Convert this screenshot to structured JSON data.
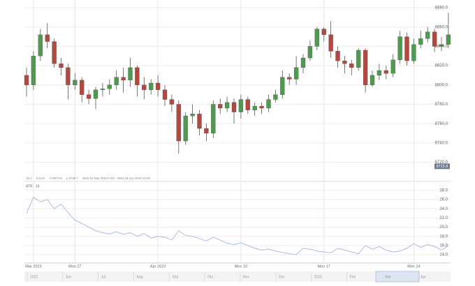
{
  "chart_data": [
    {
      "type": "candlestick",
      "categories": [
        null,
        "Mar 2023",
        null,
        null,
        null,
        null,
        null,
        "Mon 27",
        null,
        null,
        null,
        null,
        null,
        null,
        null,
        null,
        null,
        null,
        null,
        "Apr 2023",
        null,
        null,
        null,
        null,
        null,
        null,
        null,
        null,
        null,
        null,
        null,
        "Mon 10",
        null,
        null,
        null,
        null,
        null,
        null,
        null,
        null,
        null,
        null,
        null,
        "Mon 17",
        null,
        null,
        null,
        null,
        null,
        null,
        null,
        null,
        null,
        null,
        null,
        null,
        "Mon 24",
        null,
        null,
        null,
        null,
        null
      ],
      "open": [
        8810,
        8800,
        8830,
        8852,
        8845,
        8822,
        8818,
        8800,
        8805,
        8790,
        8786,
        8795,
        8796,
        8800,
        8808,
        8805,
        8818,
        8800,
        8795,
        8802,
        8795,
        8785,
        8780,
        8742,
        8768,
        8770,
        8755,
        8750,
        8780,
        8776,
        8782,
        8772,
        8785,
        8774,
        8778,
        8776,
        8785,
        8790,
        8808,
        8806,
        8818,
        8828,
        8840,
        8858,
        8852,
        8835,
        8825,
        8822,
        8818,
        8836,
        8800,
        8810,
        8815,
        8812,
        8826,
        8850,
        8825,
        8842,
        8848,
        8855,
        8840,
        8842
      ],
      "high": [
        8818,
        8835,
        8858,
        8864,
        8848,
        8828,
        8822,
        8812,
        8808,
        8795,
        8798,
        8802,
        8806,
        8815,
        8818,
        8828,
        8820,
        8808,
        8806,
        8810,
        8800,
        8790,
        8784,
        8772,
        8780,
        8774,
        8760,
        8784,
        8786,
        8788,
        8786,
        8790,
        8788,
        8782,
        8782,
        8790,
        8795,
        8815,
        8812,
        8830,
        8832,
        8846,
        8860,
        8860,
        8866,
        8840,
        8830,
        8826,
        8838,
        8838,
        8815,
        8822,
        8820,
        8832,
        8856,
        8854,
        8848,
        8856,
        8860,
        8858,
        8850,
        8874.8
      ],
      "low": [
        8788,
        8795,
        8825,
        8838,
        8818,
        8810,
        8785,
        8795,
        8782,
        8780,
        8775,
        8788,
        8790,
        8795,
        8792,
        8798,
        8788,
        8785,
        8790,
        8788,
        8778,
        8772,
        8728.7,
        8738,
        8760,
        8748,
        8742,
        8745,
        8770,
        8772,
        8760,
        8765,
        8770,
        8768,
        8770,
        8772,
        8782,
        8786,
        8800,
        8800,
        8812,
        8825,
        8836,
        8845,
        8828,
        8818,
        8812,
        8810,
        8815,
        8792,
        8798,
        8805,
        8806,
        8808,
        8822,
        8820,
        8822,
        8838,
        8844,
        8834,
        8835,
        8838
      ],
      "close": [
        8800,
        8830,
        8852,
        8845,
        8822,
        8818,
        8800,
        8805,
        8790,
        8786,
        8795,
        8796,
        8800,
        8808,
        8805,
        8818,
        8800,
        8795,
        8802,
        8795,
        8785,
        8780,
        8742,
        8768,
        8770,
        8755,
        8750,
        8780,
        8776,
        8782,
        8772,
        8785,
        8774,
        8778,
        8776,
        8785,
        8790,
        8808,
        8806,
        8818,
        8828,
        8840,
        8858,
        8852,
        8835,
        8825,
        8822,
        8818,
        8836,
        8800,
        8810,
        8815,
        8812,
        8826,
        8850,
        8825,
        8842,
        8848,
        8855,
        8840,
        8842,
        8852
      ],
      "up_color": "#4f9a4f",
      "down_color": "#b5473f",
      "ylim": [
        8711,
        8888
      ],
      "yticks": [
        {
          "value": 8720,
          "label": "8720.0"
        },
        {
          "value": 8740,
          "label": "8740.0"
        },
        {
          "value": 8760,
          "label": "8760.0"
        },
        {
          "value": 8780,
          "label": "8780.0"
        },
        {
          "value": 8800,
          "label": "8800.0"
        },
        {
          "value": 8820,
          "label": "8820.0"
        },
        {
          "value": 8840,
          "label": "8840.0"
        },
        {
          "value": 8860,
          "label": "8860.0"
        },
        {
          "value": 8880,
          "label": "8880.0"
        }
      ],
      "grid": true,
      "price_marker": 8715.8,
      "info": [
        "45.1",
        "0.51%",
        "H 8874.8",
        "L 8728.7",
        "Wed 22 Mar 2023 0:00 - Wed 26 Apr 2023 12:00"
      ]
    },
    {
      "type": "line",
      "title": "ATR",
      "series": [
        {
          "name": "14",
          "color": "#a8bde0",
          "values": [
            23.0,
            26.5,
            25.5,
            26.0,
            24.0,
            25.0,
            23.2,
            21.5,
            20.8,
            20.0,
            19.2,
            18.8,
            18.5,
            19.0,
            18.4,
            18.8,
            18.0,
            18.6,
            17.6,
            18.0,
            17.8,
            17.2,
            19.2,
            18.2,
            18.0,
            17.5,
            17.0,
            17.8,
            17.2,
            16.5,
            16.2,
            16.6,
            16.0,
            15.4,
            15.0,
            15.2,
            14.8,
            14.5,
            14.2,
            14.0,
            15.4,
            15.2,
            14.8,
            14.6,
            14.4,
            15.4,
            15.0,
            14.6,
            14.2,
            16.0,
            15.2,
            15.8,
            15.0,
            14.6,
            14.8,
            15.4,
            16.4,
            15.6,
            16.2,
            15.8,
            15.0,
            16.0
          ]
        }
      ],
      "ylim": [
        12.5,
        29.2
      ],
      "yticks": [
        {
          "value": 14,
          "label": "14.0"
        },
        {
          "value": 16,
          "label": "16.0"
        },
        {
          "value": 18,
          "label": "18.0"
        },
        {
          "value": 20,
          "label": "20.0"
        },
        {
          "value": 22,
          "label": "22.0"
        },
        {
          "value": 24,
          "label": "24.0"
        },
        {
          "value": 26,
          "label": "26.0"
        },
        {
          "value": 28,
          "label": "28.0"
        }
      ],
      "grid": true
    }
  ],
  "navigator": {
    "labels": [
      "2022",
      "Jun",
      "Jul",
      "Aug",
      "Sep",
      "Oct",
      "Nov",
      "Dec",
      "2023",
      "Feb",
      "Mar",
      "Apr"
    ]
  }
}
